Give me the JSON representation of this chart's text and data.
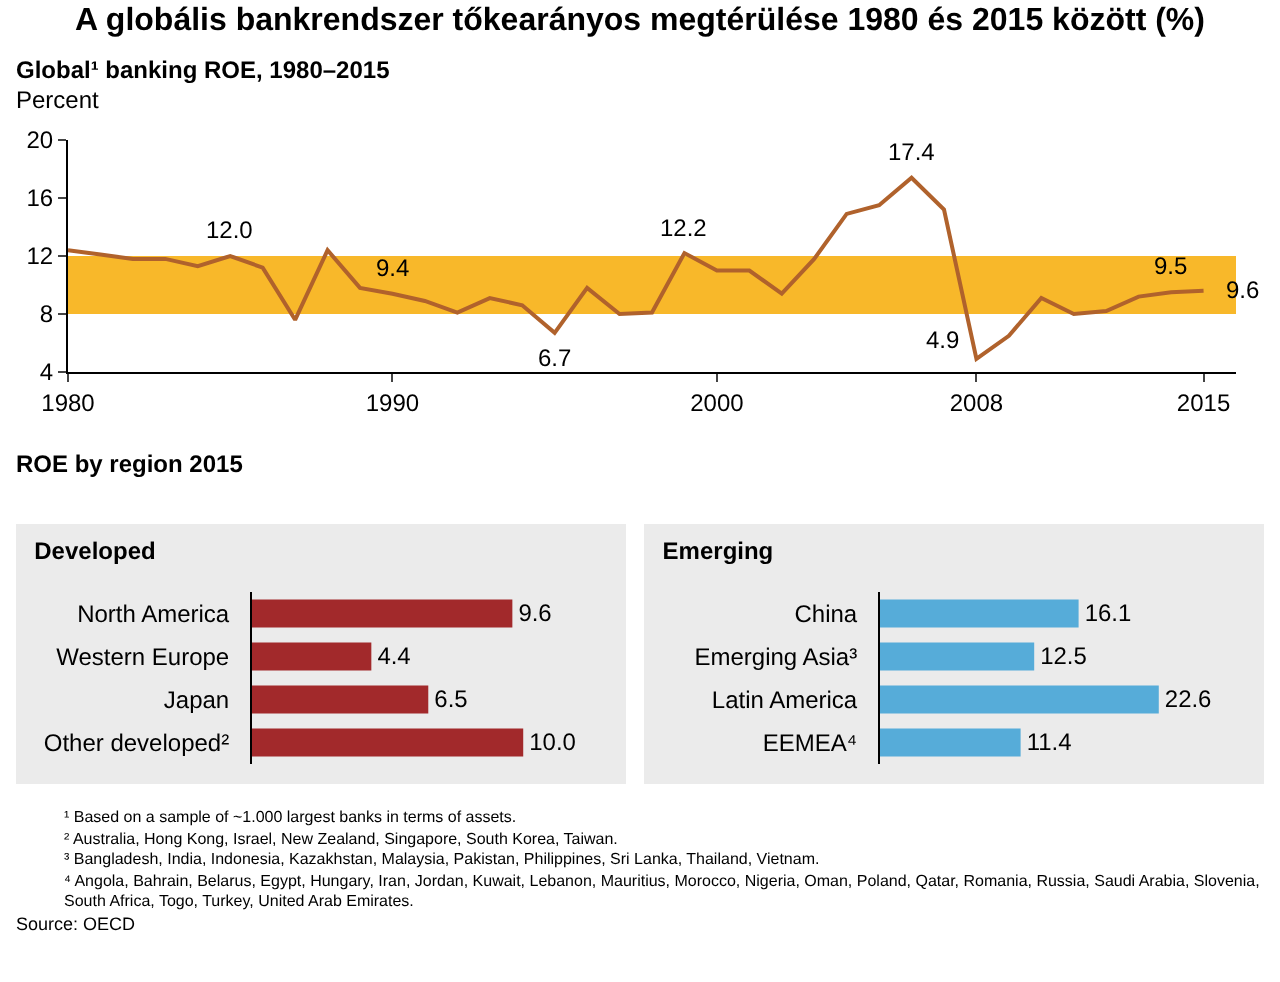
{
  "chart_data": [
    {
      "type": "line",
      "title": "A globális bankrendszer tőkearányos megtérülése 1980 és 2015 között (%)",
      "subtitle": "Global¹ banking ROE, 1980–2015",
      "ylabel": "Percent",
      "x": [
        1980,
        1981,
        1982,
        1983,
        1984,
        1985,
        1986,
        1987,
        1988,
        1989,
        1990,
        1991,
        1992,
        1993,
        1994,
        1995,
        1996,
        1997,
        1998,
        1999,
        2000,
        2001,
        2002,
        2003,
        2004,
        2005,
        2006,
        2007,
        2008,
        2009,
        2010,
        2011,
        2012,
        2013,
        2014,
        2015
      ],
      "series": [
        {
          "color": "#b0622c",
          "values": [
            12.4,
            12.1,
            11.8,
            11.8,
            11.3,
            12.0,
            11.2,
            7.6,
            12.4,
            9.8,
            9.4,
            8.9,
            8.1,
            9.1,
            8.6,
            6.7,
            9.8,
            8.0,
            8.1,
            12.2,
            11.0,
            11.0,
            9.4,
            11.8,
            14.9,
            15.5,
            17.4,
            15.2,
            4.9,
            6.5,
            9.1,
            8.0,
            8.2,
            9.2,
            9.5,
            9.6
          ],
          "value_labels": [
            null,
            null,
            null,
            null,
            null,
            "12.0",
            null,
            null,
            null,
            null,
            "9.4",
            null,
            null,
            null,
            null,
            "6.7",
            null,
            null,
            null,
            "12.2",
            null,
            null,
            null,
            null,
            null,
            null,
            "17.4",
            null,
            "4.9",
            null,
            null,
            null,
            null,
            null,
            "9.5",
            "9.6"
          ]
        }
      ],
      "xlim": [
        1980,
        2016
      ],
      "xticks": [
        1980,
        1990,
        2000,
        2008,
        2015
      ],
      "ylim": [
        4,
        20
      ],
      "yticks": [
        4,
        8,
        12,
        16,
        20
      ],
      "bands": [
        {
          "axis": "y",
          "from": 8,
          "to": 12,
          "color": "#f8b82a"
        }
      ],
      "grid": false,
      "line_style": "solid",
      "marker": "none",
      "annotations": [
        "ROE by region 2015"
      ]
    },
    {
      "type": "bar",
      "orientation": "horizontal",
      "title": "Developed",
      "categories": [
        "North America",
        "Western Europe",
        "Japan",
        "Other developed²"
      ],
      "values": [
        9.6,
        4.4,
        6.5,
        10.0
      ],
      "value_labels": [
        "9.6",
        "4.4",
        "6.5",
        "10.0"
      ],
      "color": "#a2292b",
      "data_labels": true,
      "grid": false
    },
    {
      "type": "bar",
      "orientation": "horizontal",
      "title": "Emerging",
      "categories": [
        "China",
        "Emerging Asia³",
        "Latin America",
        "EEMEA⁴"
      ],
      "values": [
        16.1,
        12.5,
        22.6,
        11.4
      ],
      "value_labels": [
        "16.1",
        "12.5",
        "22.6",
        "11.4"
      ],
      "color": "#56acd9",
      "data_labels": true,
      "grid": false,
      "annotations": [
        "¹ Based on a sample of ~1.000 largest banks in terms of assets.",
        "² Australia, Hong Kong, Israel, New Zealand, Singapore, South Korea, Taiwan.",
        "³ Bangladesh, India, Indonesia, Kazakhstan, Malaysia, Pakistan, Philippines, Sri Lanka, Thailand, Vietnam.",
        "⁴ Angola, Bahrain, Belarus, Egypt, Hungary, Iran, Jordan, Kuwait, Lebanon, Mauritius, Morocco, Nigeria, Oman, Poland, Qatar, Romania, Russia, Saudi Arabia, Slovenia, South Africa, Togo, Turkey, United Arab Emirates.",
        "Source: OECD"
      ]
    }
  ]
}
